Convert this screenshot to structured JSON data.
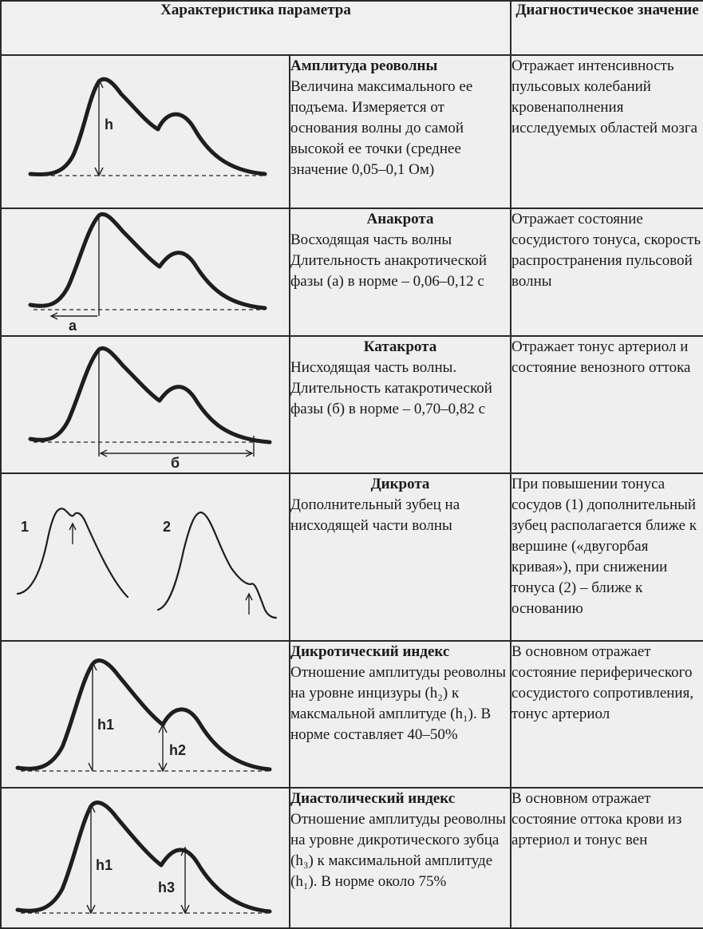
{
  "header": {
    "col_characteristic": "Характеристика параметра",
    "col_diagnostic": "Диагностическое значение"
  },
  "rows": [
    {
      "title": "Амплитуда реоволны",
      "description": "Величина максимального ее подъема. Измеряется от основания волны до самой высокой ее точки (среднее значение 0,05–0,1 Ом)",
      "diagnostic": "Отражает интенсивность пульсовых колебаний кровенаполнения исследуемых областей мозга",
      "figure_labels": [
        "h"
      ]
    },
    {
      "title": "Анакрота",
      "description": "Восходящая часть волны Длительность анакротической фазы (а) в норме – 0,06–0,12 с",
      "diagnostic": "Отражает состояние сосудистого тонуса, скорость распространения пульсовой волны",
      "figure_labels": [
        "а"
      ]
    },
    {
      "title": "Катакрота",
      "description": "Нисходящая часть волны. Длительность катакротической фазы (б) в норме – 0,70–0,82 с",
      "diagnostic": "Отражает тонус артериол и состояние венозного оттока",
      "figure_labels": [
        "б"
      ]
    },
    {
      "title": "Дикрота",
      "description": "Дополнительный зубец на нисходящей части волны",
      "diagnostic": "При повышении тонуса сосудов (1) дополнительный зубец располагается ближе к вершине («двугорбая кривая»), при снижении тонуса (2) – ближе к основанию",
      "figure_labels": [
        "1",
        "2"
      ]
    },
    {
      "title": "Дикротический индекс",
      "description": "Отношение амплитуды реоволны на уровне инцизуры (h₂) к максмальной амплитуде (h₁). В норме составляет 40–50%",
      "diagnostic": "В основном отражает состояние периферического сосудистого сопротивления, тонус артериол",
      "figure_labels": [
        "h1",
        "h2"
      ]
    },
    {
      "title": "Диастолический индекс",
      "description": "Отношение амплитуды реоволны на уровне дикротического зубца (h₃) к максимальной амплитуде (h₁). В норме около 75%",
      "diagnostic": "В основном отражает состояние оттока крови из артериол и тонус вен",
      "figure_labels": [
        "h1",
        "h3"
      ]
    }
  ]
}
